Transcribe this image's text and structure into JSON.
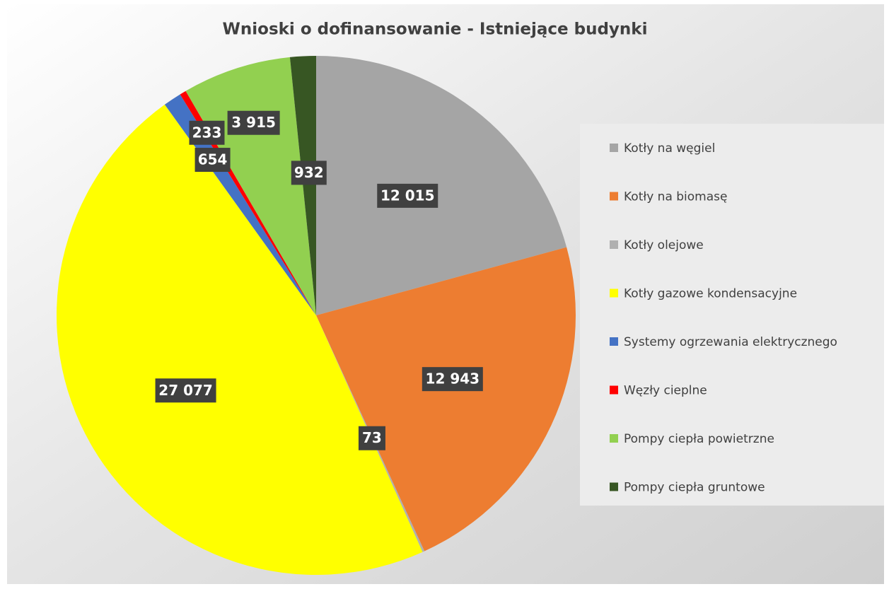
{
  "chart_data": {
    "type": "pie",
    "title": "Wnioski o dofinansowanie - Istniejące budynki",
    "categories": [
      "Kotły na węgiel",
      "Kotły na biomasę",
      "Kotły olejowe",
      "Kotły gazowe kondensacyjne",
      "Systemy ogrzewania elektrycznego",
      "Węzły cieplne",
      "Pompy ciepła powietrzne",
      "Pompy ciepła gruntowe"
    ],
    "values": [
      12015,
      12943,
      73,
      27077,
      654,
      233,
      3915,
      932
    ],
    "value_labels": [
      "12 015",
      "12 943",
      "73",
      "27 077",
      "654",
      "233",
      "3 915",
      "932"
    ],
    "colors": [
      "#a5a5a5",
      "#ed7d31",
      "#b0b0b0",
      "#ffff00",
      "#4472c4",
      "#ff0000",
      "#92d050",
      "#375623"
    ],
    "legend": "right"
  }
}
